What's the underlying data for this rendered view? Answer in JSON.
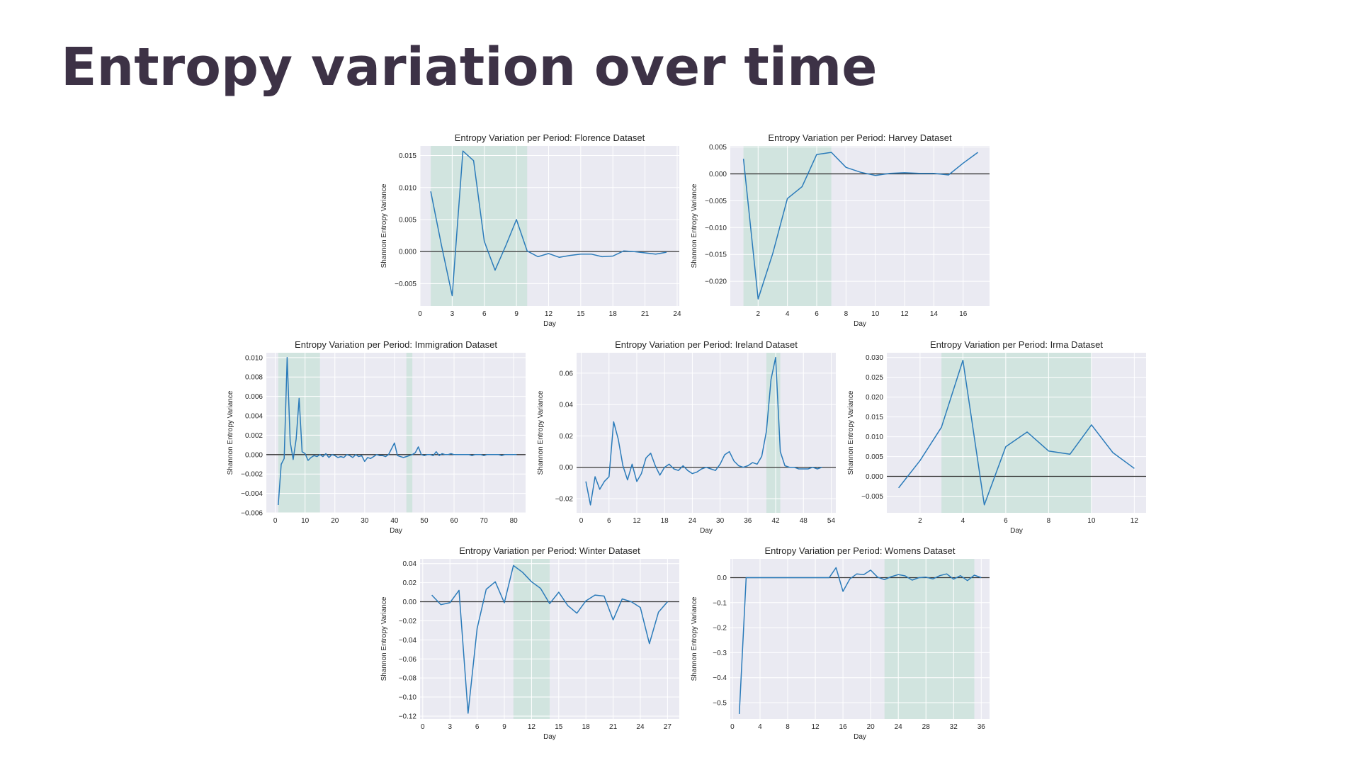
{
  "page": {
    "title": "Entropy variation over time"
  },
  "colors": {
    "line": "#2b7bba",
    "zero_line": "#333333",
    "shade": "#cde3dc",
    "plot_bg": "#eaeaf2",
    "grid": "#ffffff",
    "title": "#3d3246"
  },
  "chart_data": [
    {
      "type": "line",
      "title": "Entropy Variation per Period: Florence Dataset",
      "xlabel": "Day",
      "ylabel": "Shannon Entropy Variance",
      "xlim": [
        0,
        24.2
      ],
      "ylim": [
        -0.0085,
        0.0165
      ],
      "xticks": [
        0,
        3,
        6,
        9,
        12,
        15,
        18,
        21,
        24
      ],
      "xtick_labels": [
        "0",
        "3",
        "6",
        "9",
        "12",
        "15",
        "18",
        "21",
        "24"
      ],
      "yticks": [
        -0.005,
        0,
        0.005,
        0.01,
        0.015
      ],
      "ytick_labels": [
        "−0.005",
        "0.000",
        "0.005",
        "0.010",
        "0.015"
      ],
      "grid": true,
      "shaded_ranges": [
        [
          1,
          10
        ]
      ],
      "x": [
        1,
        2,
        3,
        4,
        5,
        6,
        7,
        8,
        9,
        10,
        11,
        12,
        13,
        14,
        15,
        16,
        17,
        18,
        19,
        20,
        21,
        22,
        23
      ],
      "y": [
        0.0094,
        0.001,
        -0.0069,
        0.0157,
        0.0142,
        0.0016,
        -0.0029,
        0.0009,
        0.005,
        0.0001,
        -0.0008,
        -0.0003,
        -0.0009,
        -0.0006,
        -0.0004,
        -0.0004,
        -0.0008,
        -0.0007,
        0.0001,
        0.0,
        -0.0002,
        -0.0004,
        -0.0001
      ]
    },
    {
      "type": "line",
      "title": "Entropy Variation per Period: Harvey Dataset",
      "xlabel": "Day",
      "ylabel": "Shannon Entropy Variance",
      "xlim": [
        0.1,
        17.8
      ],
      "ylim": [
        -0.0246,
        0.0052
      ],
      "xticks": [
        2,
        4,
        6,
        8,
        10,
        12,
        14,
        16
      ],
      "xtick_labels": [
        "2",
        "4",
        "6",
        "8",
        "10",
        "12",
        "14",
        "16"
      ],
      "yticks": [
        -0.02,
        -0.015,
        -0.01,
        -0.005,
        0,
        0.005
      ],
      "ytick_labels": [
        "−0.020",
        "−0.015",
        "−0.010",
        "−0.005",
        "0.000",
        "0.005"
      ],
      "grid": true,
      "shaded_ranges": [
        [
          1,
          7
        ]
      ],
      "x": [
        1,
        2,
        3,
        4,
        5,
        6,
        7,
        8,
        9,
        10,
        11,
        12,
        13,
        14,
        15,
        16,
        17
      ],
      "y": [
        0.0028,
        -0.0233,
        -0.0148,
        -0.0046,
        -0.0024,
        0.0036,
        0.004,
        0.0012,
        0.0003,
        -0.0003,
        0.0001,
        0.0002,
        0.0001,
        0.0001,
        -0.0002,
        0.002,
        0.004
      ]
    },
    {
      "type": "line",
      "title": "Entropy Variation per Period: Immigration Dataset",
      "xlabel": "Day",
      "ylabel": "Shannon Entropy Variance",
      "xlim": [
        -3,
        84
      ],
      "ylim": [
        -0.006,
        0.0105
      ],
      "xticks": [
        0,
        10,
        20,
        30,
        40,
        50,
        60,
        70,
        80
      ],
      "xtick_labels": [
        "0",
        "10",
        "20",
        "30",
        "40",
        "50",
        "60",
        "70",
        "80"
      ],
      "yticks": [
        -0.006,
        -0.004,
        -0.002,
        0,
        0.002,
        0.004,
        0.006,
        0.008,
        0.01
      ],
      "ytick_labels": [
        "−0.006",
        "−0.004",
        "−0.002",
        "0.000",
        "0.002",
        "0.004",
        "0.006",
        "0.008",
        "0.010"
      ],
      "grid": true,
      "shaded_ranges": [
        [
          1,
          15
        ],
        [
          44,
          46
        ]
      ],
      "x": [
        1,
        2,
        3,
        4,
        5,
        6,
        7,
        8,
        9,
        10,
        11,
        12,
        13,
        14,
        15,
        16,
        17,
        18,
        19,
        20,
        21,
        22,
        23,
        24,
        25,
        26,
        27,
        28,
        29,
        30,
        31,
        32,
        33,
        34,
        35,
        36,
        37,
        38,
        39,
        40,
        41,
        42,
        43,
        44,
        45,
        46,
        47,
        48,
        49,
        50,
        51,
        52,
        53,
        54,
        55,
        56,
        57,
        58,
        59,
        60,
        61,
        62,
        63,
        64,
        65,
        66,
        67,
        68,
        69,
        70,
        71,
        72,
        73,
        74,
        75,
        76,
        77,
        78,
        79,
        80,
        81
      ],
      "y": [
        -0.0052,
        -0.001,
        -0.0004,
        0.01,
        0.0013,
        -0.0005,
        0.0016,
        0.0058,
        0.0003,
        0.0001,
        -0.0006,
        -0.0003,
        -0.0001,
        -0.0002,
        0.0,
        -0.0002,
        0.0001,
        -0.0003,
        0.0,
        -0.0001,
        -0.0003,
        -0.0002,
        -0.0003,
        0.0,
        -0.0001,
        -0.0003,
        0.0,
        -0.0002,
        -0.0001,
        -0.0007,
        -0.0003,
        -0.0004,
        -0.0002,
        0.0,
        -0.0001,
        -0.0001,
        -0.0002,
        0.0,
        0.0006,
        0.0012,
        -0.0001,
        -0.0002,
        -0.0003,
        -0.0002,
        -0.0001,
        0.0,
        0.0002,
        0.0008,
        0.0,
        -0.0001,
        0.0,
        0.0,
        -0.0001,
        0.0003,
        -0.0001,
        0.0001,
        0.0,
        0.0,
        0.0001,
        0.0,
        0.0,
        0.0,
        0.0,
        0.0,
        0.0,
        -0.0001,
        0.0,
        0.0,
        0.0,
        -0.0001,
        0.0,
        0.0,
        0.0,
        0.0,
        0.0,
        -0.0001,
        0.0,
        0.0,
        0.0,
        0.0,
        0.0
      ]
    },
    {
      "type": "line",
      "title": "Entropy Variation per Period: Ireland Dataset",
      "xlabel": "Day",
      "ylabel": "Shannon Entropy Variance",
      "xlim": [
        -1,
        55
      ],
      "ylim": [
        -0.029,
        0.073
      ],
      "xticks": [
        0,
        6,
        12,
        18,
        24,
        30,
        36,
        42,
        48,
        54
      ],
      "xtick_labels": [
        "0",
        "6",
        "12",
        "18",
        "24",
        "30",
        "36",
        "42",
        "48",
        "54"
      ],
      "yticks": [
        -0.02,
        0,
        0.02,
        0.04,
        0.06
      ],
      "ytick_labels": [
        "−0.02",
        "0.00",
        "0.02",
        "0.04",
        "0.06"
      ],
      "grid": true,
      "shaded_ranges": [
        [
          40,
          43
        ]
      ],
      "x": [
        1,
        2,
        3,
        4,
        5,
        6,
        7,
        8,
        9,
        10,
        11,
        12,
        13,
        14,
        15,
        16,
        17,
        18,
        19,
        20,
        21,
        22,
        23,
        24,
        25,
        26,
        27,
        28,
        29,
        30,
        31,
        32,
        33,
        34,
        35,
        36,
        37,
        38,
        39,
        40,
        41,
        42,
        43,
        44,
        45,
        46,
        47,
        48,
        49,
        50,
        51,
        52
      ],
      "y": [
        -0.009,
        -0.024,
        -0.006,
        -0.014,
        -0.009,
        -0.006,
        0.029,
        0.018,
        0.001,
        -0.008,
        0.002,
        -0.009,
        -0.004,
        0.006,
        0.009,
        0.001,
        -0.005,
        0.0,
        0.002,
        -0.001,
        -0.002,
        0.001,
        -0.002,
        -0.004,
        -0.003,
        -0.001,
        0.0,
        -0.001,
        -0.002,
        0.002,
        0.008,
        0.01,
        0.004,
        0.001,
        0.0,
        0.001,
        0.003,
        0.002,
        0.007,
        0.023,
        0.056,
        0.07,
        0.01,
        0.001,
        0.0,
        0.0,
        -0.001,
        -0.001,
        -0.001,
        0.0,
        -0.001,
        0.0
      ]
    },
    {
      "type": "line",
      "title": "Entropy Variation per Period: Irma Dataset",
      "xlabel": "Day",
      "ylabel": "Shannon Entropy Variance",
      "xlim": [
        0.45,
        12.55
      ],
      "ylim": [
        -0.0092,
        0.0312
      ],
      "xticks": [
        2,
        4,
        6,
        8,
        10,
        12
      ],
      "xtick_labels": [
        "2",
        "4",
        "6",
        "8",
        "10",
        "12"
      ],
      "yticks": [
        -0.005,
        0,
        0.005,
        0.01,
        0.015,
        0.02,
        0.025,
        0.03
      ],
      "ytick_labels": [
        "−0.005",
        "0.000",
        "0.005",
        "0.010",
        "0.015",
        "0.020",
        "0.025",
        "0.030"
      ],
      "grid": true,
      "shaded_ranges": [
        [
          3,
          10
        ]
      ],
      "x": [
        1,
        2,
        3,
        4,
        5,
        6,
        7,
        8,
        9,
        10,
        11,
        12
      ],
      "y": [
        -0.0029,
        0.004,
        0.0124,
        0.0293,
        -0.0072,
        0.0075,
        0.0112,
        0.0064,
        0.0056,
        0.013,
        0.006,
        0.002
      ]
    },
    {
      "type": "line",
      "title": "Entropy Variation per Period: Winter Dataset",
      "xlabel": "Day",
      "ylabel": "Shannon Entropy Variance",
      "xlim": [
        -0.3,
        28.3
      ],
      "ylim": [
        -0.123,
        0.045
      ],
      "xticks": [
        0,
        3,
        6,
        9,
        12,
        15,
        18,
        21,
        24,
        27
      ],
      "xtick_labels": [
        "0",
        "3",
        "6",
        "9",
        "12",
        "15",
        "18",
        "21",
        "24",
        "27"
      ],
      "yticks": [
        -0.12,
        -0.1,
        -0.08,
        -0.06,
        -0.04,
        -0.02,
        0,
        0.02,
        0.04
      ],
      "ytick_labels": [
        "−0.12",
        "−0.10",
        "−0.08",
        "−0.06",
        "−0.04",
        "−0.02",
        "0.00",
        "0.02",
        "0.04"
      ],
      "grid": true,
      "shaded_ranges": [
        [
          10,
          14
        ]
      ],
      "x": [
        1,
        2,
        3,
        4,
        5,
        6,
        7,
        8,
        9,
        10,
        11,
        12,
        13,
        14,
        15,
        16,
        17,
        18,
        19,
        20,
        21,
        22,
        23,
        24,
        25,
        26,
        27
      ],
      "y": [
        0.007,
        -0.003,
        -0.001,
        0.012,
        -0.117,
        -0.028,
        0.013,
        0.021,
        -0.001,
        0.038,
        0.031,
        0.021,
        0.014,
        -0.002,
        0.01,
        -0.004,
        -0.012,
        0.001,
        0.007,
        0.006,
        -0.019,
        0.003,
        0.0,
        -0.006,
        -0.044,
        -0.011,
        0.0
      ]
    },
    {
      "type": "line",
      "title": "Entropy Variation per Period: Womens Dataset",
      "xlabel": "Day",
      "ylabel": "Shannon Entropy Variance",
      "xlim": [
        -0.3,
        37.2
      ],
      "ylim": [
        -0.565,
        0.075
      ],
      "xticks": [
        0,
        4,
        8,
        12,
        16,
        20,
        24,
        28,
        32,
        36
      ],
      "xtick_labels": [
        "0",
        "4",
        "8",
        "12",
        "16",
        "20",
        "24",
        "28",
        "32",
        "36"
      ],
      "yticks": [
        -0.5,
        -0.4,
        -0.3,
        -0.2,
        -0.1,
        0
      ],
      "ytick_labels": [
        "−0.5",
        "−0.4",
        "−0.3",
        "−0.2",
        "−0.1",
        "0.0"
      ],
      "grid": true,
      "shaded_ranges": [
        [
          22,
          35
        ]
      ],
      "x": [
        1,
        2,
        3,
        4,
        5,
        6,
        7,
        8,
        9,
        10,
        11,
        12,
        13,
        14,
        15,
        16,
        17,
        18,
        19,
        20,
        21,
        22,
        23,
        24,
        25,
        26,
        27,
        28,
        29,
        30,
        31,
        32,
        33,
        34,
        35,
        36
      ],
      "y": [
        -0.545,
        0.0,
        0.0,
        0.0,
        0.0,
        0.0,
        0.0,
        0.0,
        0.0,
        0.0,
        0.0,
        0.0,
        0.0,
        0.0,
        0.04,
        -0.055,
        -0.005,
        0.015,
        0.012,
        0.03,
        0.002,
        -0.008,
        0.004,
        0.012,
        0.007,
        -0.01,
        0.0,
        0.002,
        -0.005,
        0.008,
        0.015,
        -0.006,
        0.008,
        -0.012,
        0.01,
        0.0
      ]
    }
  ]
}
